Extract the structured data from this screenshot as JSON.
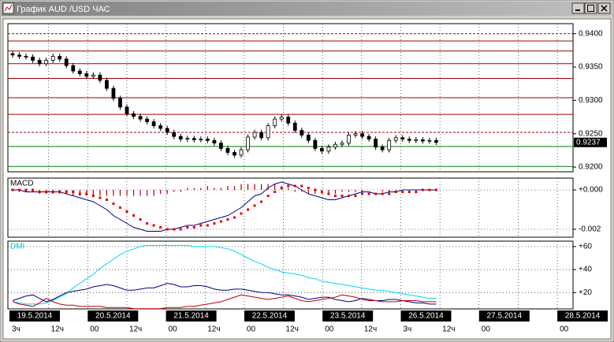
{
  "window": {
    "title": "График AUD /USD ЧАС"
  },
  "chart_data": [
    {
      "type": "candlestick",
      "color": "#000000",
      "grid": false,
      "ylim": [
        0.9193,
        0.9415
      ],
      "yticks": [
        {
          "value": 0.94,
          "label": "0.9400"
        },
        {
          "value": 0.935,
          "label": "0.9350"
        },
        {
          "value": 0.93,
          "label": "0.9300"
        },
        {
          "value": 0.925,
          "label": "0.9250"
        },
        {
          "value": 0.92,
          "label": "0.9200"
        }
      ],
      "levels": [
        {
          "value": 0.94,
          "color": "#a00000",
          "dashed": true
        },
        {
          "value": 0.9389,
          "color": "#a00000",
          "dashed": false
        },
        {
          "value": 0.9374,
          "color": "#a00000",
          "dashed": false
        },
        {
          "value": 0.9355,
          "color": "#a00000",
          "dashed": false
        },
        {
          "value": 0.9333,
          "color": "#a00000",
          "dashed": false
        },
        {
          "value": 0.9304,
          "color": "#a00000",
          "dashed": false
        },
        {
          "value": 0.9279,
          "color": "#a00000",
          "dashed": false
        },
        {
          "value": 0.9252,
          "color": "#a00000",
          "dashed": true
        },
        {
          "value": 0.9231,
          "color": "#008000",
          "dashed": false
        },
        {
          "value": 0.9201,
          "color": "#008000",
          "dashed": false
        }
      ],
      "last_price": {
        "value": 0.9237,
        "label": "0.9237"
      },
      "open": [
        0.937,
        0.9368,
        0.9366,
        0.9365,
        0.936,
        0.9355,
        0.936,
        0.9366,
        0.9362,
        0.9352,
        0.9344,
        0.934,
        0.9336,
        0.9338,
        0.933,
        0.9318,
        0.9303,
        0.929,
        0.928,
        0.9276,
        0.9272,
        0.9268,
        0.9262,
        0.9258,
        0.9252,
        0.9246,
        0.9242,
        0.9243,
        0.9241,
        0.9242,
        0.924,
        0.9236,
        0.9228,
        0.9222,
        0.9218,
        0.9226,
        0.9245,
        0.9252,
        0.9244,
        0.9262,
        0.9272,
        0.9275,
        0.9266,
        0.9255,
        0.9248,
        0.924,
        0.9228,
        0.9224,
        0.923,
        0.9234,
        0.9236,
        0.9248,
        0.925,
        0.9246,
        0.9242,
        0.923,
        0.9226,
        0.924,
        0.9244,
        0.9242,
        0.924,
        0.9241,
        0.9239,
        0.924
      ],
      "high": [
        0.9374,
        0.9372,
        0.937,
        0.9369,
        0.9364,
        0.9364,
        0.937,
        0.937,
        0.9366,
        0.9356,
        0.9348,
        0.9344,
        0.9342,
        0.9342,
        0.9334,
        0.9322,
        0.9307,
        0.9294,
        0.9284,
        0.928,
        0.9276,
        0.9272,
        0.9266,
        0.9262,
        0.9256,
        0.925,
        0.9247,
        0.9247,
        0.9246,
        0.9246,
        0.9244,
        0.924,
        0.9232,
        0.9226,
        0.923,
        0.9249,
        0.9256,
        0.9256,
        0.9266,
        0.9276,
        0.9279,
        0.9279,
        0.927,
        0.9259,
        0.9252,
        0.9244,
        0.9232,
        0.9234,
        0.9238,
        0.924,
        0.9252,
        0.9254,
        0.9254,
        0.925,
        0.9246,
        0.9234,
        0.9244,
        0.9248,
        0.9248,
        0.9246,
        0.9245,
        0.9245,
        0.9244,
        0.9244
      ],
      "low": [
        0.9364,
        0.9362,
        0.9361,
        0.9356,
        0.9351,
        0.9351,
        0.9356,
        0.9358,
        0.9348,
        0.934,
        0.9336,
        0.9332,
        0.9332,
        0.9326,
        0.9314,
        0.9299,
        0.9286,
        0.9276,
        0.9272,
        0.9268,
        0.9264,
        0.9258,
        0.9254,
        0.9248,
        0.9242,
        0.9238,
        0.9238,
        0.9237,
        0.9237,
        0.9236,
        0.9232,
        0.9224,
        0.9218,
        0.9214,
        0.9214,
        0.9222,
        0.9241,
        0.924,
        0.924,
        0.9258,
        0.9268,
        0.9262,
        0.9251,
        0.9244,
        0.9236,
        0.9224,
        0.922,
        0.922,
        0.9226,
        0.923,
        0.9232,
        0.9244,
        0.9242,
        0.9238,
        0.9226,
        0.9222,
        0.9222,
        0.9236,
        0.9238,
        0.9236,
        0.9236,
        0.9235,
        0.9235,
        0.9233
      ],
      "close": [
        0.9368,
        0.9366,
        0.9365,
        0.936,
        0.9355,
        0.936,
        0.9366,
        0.9362,
        0.9352,
        0.9344,
        0.934,
        0.9336,
        0.9338,
        0.933,
        0.9318,
        0.9303,
        0.929,
        0.928,
        0.9276,
        0.9272,
        0.9268,
        0.9262,
        0.9258,
        0.9252,
        0.9246,
        0.9242,
        0.9243,
        0.9241,
        0.9242,
        0.924,
        0.9236,
        0.9228,
        0.9222,
        0.9218,
        0.9226,
        0.9245,
        0.9252,
        0.9244,
        0.9262,
        0.9272,
        0.9275,
        0.9266,
        0.9255,
        0.9248,
        0.924,
        0.9228,
        0.9224,
        0.923,
        0.9234,
        0.9236,
        0.9248,
        0.925,
        0.9246,
        0.9242,
        0.923,
        0.9226,
        0.924,
        0.9244,
        0.9242,
        0.924,
        0.9241,
        0.9239,
        0.924,
        0.9237
      ]
    },
    {
      "type": "macd",
      "label": "MACD",
      "grid": true,
      "ylim": [
        -0.0024,
        0.0006
      ],
      "yticks": [
        {
          "value": 0,
          "label": "+0.000"
        },
        {
          "value": -0.002,
          "label": "-0.002"
        }
      ],
      "series": [
        {
          "style": "histogram",
          "color": "#b00000",
          "values": [
            0,
            -0.0001,
            -0.0001,
            -0.0001,
            -0.0002,
            -0.0002,
            -0.0002,
            -0.0002,
            -0.0002,
            -0.0003,
            -0.0003,
            -0.0003,
            -0.0003,
            -0.0003,
            -0.0003,
            -0.0003,
            -0.0003,
            -0.0003,
            -0.0003,
            -0.0003,
            -0.0003,
            -0.0003,
            -0.0002,
            -0.0002,
            -0.0001,
            -0.0001,
            0.0001,
            0.0001,
            0.0001,
            0.0002,
            0.0001,
            0.0001,
            0.0002,
            0.0002,
            0.0003,
            0.0003,
            0.0003,
            0.0003,
            0.0003,
            0.0003,
            0.0002,
            0.0001,
            -0.0001,
            -0.0001,
            -0.0002,
            -0.0002,
            -0.0002,
            -0.0002,
            -0.0002,
            -0.0001,
            -0.0001,
            -0.0001,
            -0.0001,
            0,
            0,
            -0.0001,
            -0.0001,
            -0.0001,
            0,
            0,
            0,
            0,
            0,
            0
          ]
        },
        {
          "style": "line",
          "color": "#000080",
          "values": [
            0,
            0,
            -0.0001,
            -0.0001,
            -0.0001,
            -0.0001,
            -0.0001,
            -0.0001,
            -0.0002,
            -0.0003,
            -0.0004,
            -0.0005,
            -0.0006,
            -0.0008,
            -0.001,
            -0.0013,
            -0.0015,
            -0.0017,
            -0.0019,
            -0.002,
            -0.0021,
            -0.0021,
            -0.0021,
            -0.002,
            -0.002,
            -0.0019,
            -0.0018,
            -0.0018,
            -0.0017,
            -0.0016,
            -0.0015,
            -0.0014,
            -0.0013,
            -0.0011,
            -0.0009,
            -0.0006,
            -0.0003,
            -0.0002,
            0.0001,
            0.0003,
            0.0004,
            0.0003,
            0.0002,
            0,
            -0.0002,
            -0.0003,
            -0.0004,
            -0.0005,
            -0.0005,
            -0.0004,
            -0.0003,
            -0.0002,
            -0.0001,
            -0.0001,
            -0.0002,
            -0.0002,
            -0.0001,
            -0.0001,
            0,
            0,
            0,
            0,
            0,
            0
          ]
        },
        {
          "style": "dots",
          "color": "#e00000",
          "values": [
            0,
            0,
            0,
            0,
            -0.0001,
            -0.0001,
            -0.0001,
            -0.0001,
            -0.0001,
            -0.0001,
            -0.0002,
            -0.0002,
            -0.0003,
            -0.0004,
            -0.0005,
            -0.0007,
            -0.0009,
            -0.0011,
            -0.0013,
            -0.0015,
            -0.0017,
            -0.0018,
            -0.0019,
            -0.002,
            -0.002,
            -0.002,
            -0.0019,
            -0.0019,
            -0.0018,
            -0.0018,
            -0.0017,
            -0.0016,
            -0.0015,
            -0.0014,
            -0.0012,
            -0.001,
            -0.0008,
            -0.0006,
            -0.0003,
            -0.0001,
            0.0001,
            0.0002,
            0.0002,
            0.0002,
            0.0001,
            0,
            -0.0001,
            -0.0002,
            -0.0003,
            -0.0003,
            -0.0003,
            -0.0003,
            -0.0002,
            -0.0002,
            -0.0002,
            -0.0002,
            -0.0002,
            -0.0001,
            -0.0001,
            -0.0001,
            -0.0001,
            0,
            0,
            0
          ]
        }
      ]
    },
    {
      "type": "line",
      "label": "DMI",
      "label_color": "#00c8e0",
      "grid": true,
      "ylim": [
        5.8,
        64.7
      ],
      "yticks": [
        {
          "value": 60,
          "label": "+60"
        },
        {
          "value": 40,
          "label": "+40"
        },
        {
          "value": 20,
          "label": "+20"
        }
      ],
      "series": [
        {
          "style": "line",
          "color": "#00d8f0",
          "values": [
            12,
            11,
            10,
            10,
            10,
            11,
            13,
            16,
            19,
            24,
            28,
            32,
            36,
            41,
            45,
            49,
            53,
            56,
            58,
            60,
            61,
            61,
            61,
            61,
            61,
            61,
            61,
            60,
            60,
            60,
            60,
            59,
            58,
            56,
            53,
            50,
            47,
            45,
            42,
            40,
            38,
            37,
            36,
            35,
            33,
            32,
            30,
            29,
            28,
            27,
            26,
            25,
            24,
            23,
            22,
            22,
            21,
            20,
            19,
            18,
            17,
            16,
            15,
            15
          ]
        },
        {
          "style": "line",
          "color": "#000080",
          "values": [
            13,
            15,
            17,
            18,
            15,
            12,
            14,
            17,
            20,
            21,
            22,
            23,
            25,
            26,
            27,
            26,
            24,
            22,
            22,
            23,
            24,
            24,
            26,
            28,
            27,
            25,
            25,
            26,
            26,
            25,
            23,
            22,
            22,
            23,
            23,
            22,
            21,
            20,
            20,
            19,
            18,
            18,
            17,
            16,
            14,
            15,
            16,
            16,
            14,
            13,
            12,
            13,
            15,
            14,
            13,
            13,
            14,
            14,
            13,
            12,
            11,
            11,
            10,
            10
          ]
        },
        {
          "style": "line",
          "color": "#c00000",
          "values": [
            12,
            10,
            9,
            8,
            11,
            15,
            12,
            10,
            9,
            9,
            8,
            8,
            8,
            8,
            7,
            7,
            7,
            7,
            6,
            6,
            6,
            6,
            6,
            7,
            7,
            7,
            8,
            8,
            9,
            10,
            11,
            12,
            14,
            16,
            18,
            17,
            16,
            15,
            14,
            15,
            16,
            17,
            15,
            13,
            12,
            13,
            14,
            15,
            16,
            18,
            17,
            16,
            14,
            13,
            13,
            12,
            12,
            12,
            13,
            13,
            13,
            12,
            12,
            12
          ]
        }
      ]
    }
  ],
  "time_axis": [
    {
      "date": "19.5.2014",
      "hours": [
        "3ч",
        "12ч"
      ]
    },
    {
      "date": "20.5.2014",
      "hours": [
        "00",
        "12ч"
      ]
    },
    {
      "date": "21.5.2014",
      "hours": [
        "00",
        "12ч"
      ]
    },
    {
      "date": "22.5.2014",
      "hours": [
        "00",
        "12ч"
      ]
    },
    {
      "date": "23.5.2014",
      "hours": [
        "00",
        "12ч"
      ]
    },
    {
      "date": "26.5.2014",
      "hours": [
        "3ч",
        "12ч"
      ]
    },
    {
      "date": "27.5.2014",
      "hours": [
        "00"
      ]
    },
    {
      "date": "28.5.2014",
      "hours": [
        "00"
      ]
    }
  ]
}
